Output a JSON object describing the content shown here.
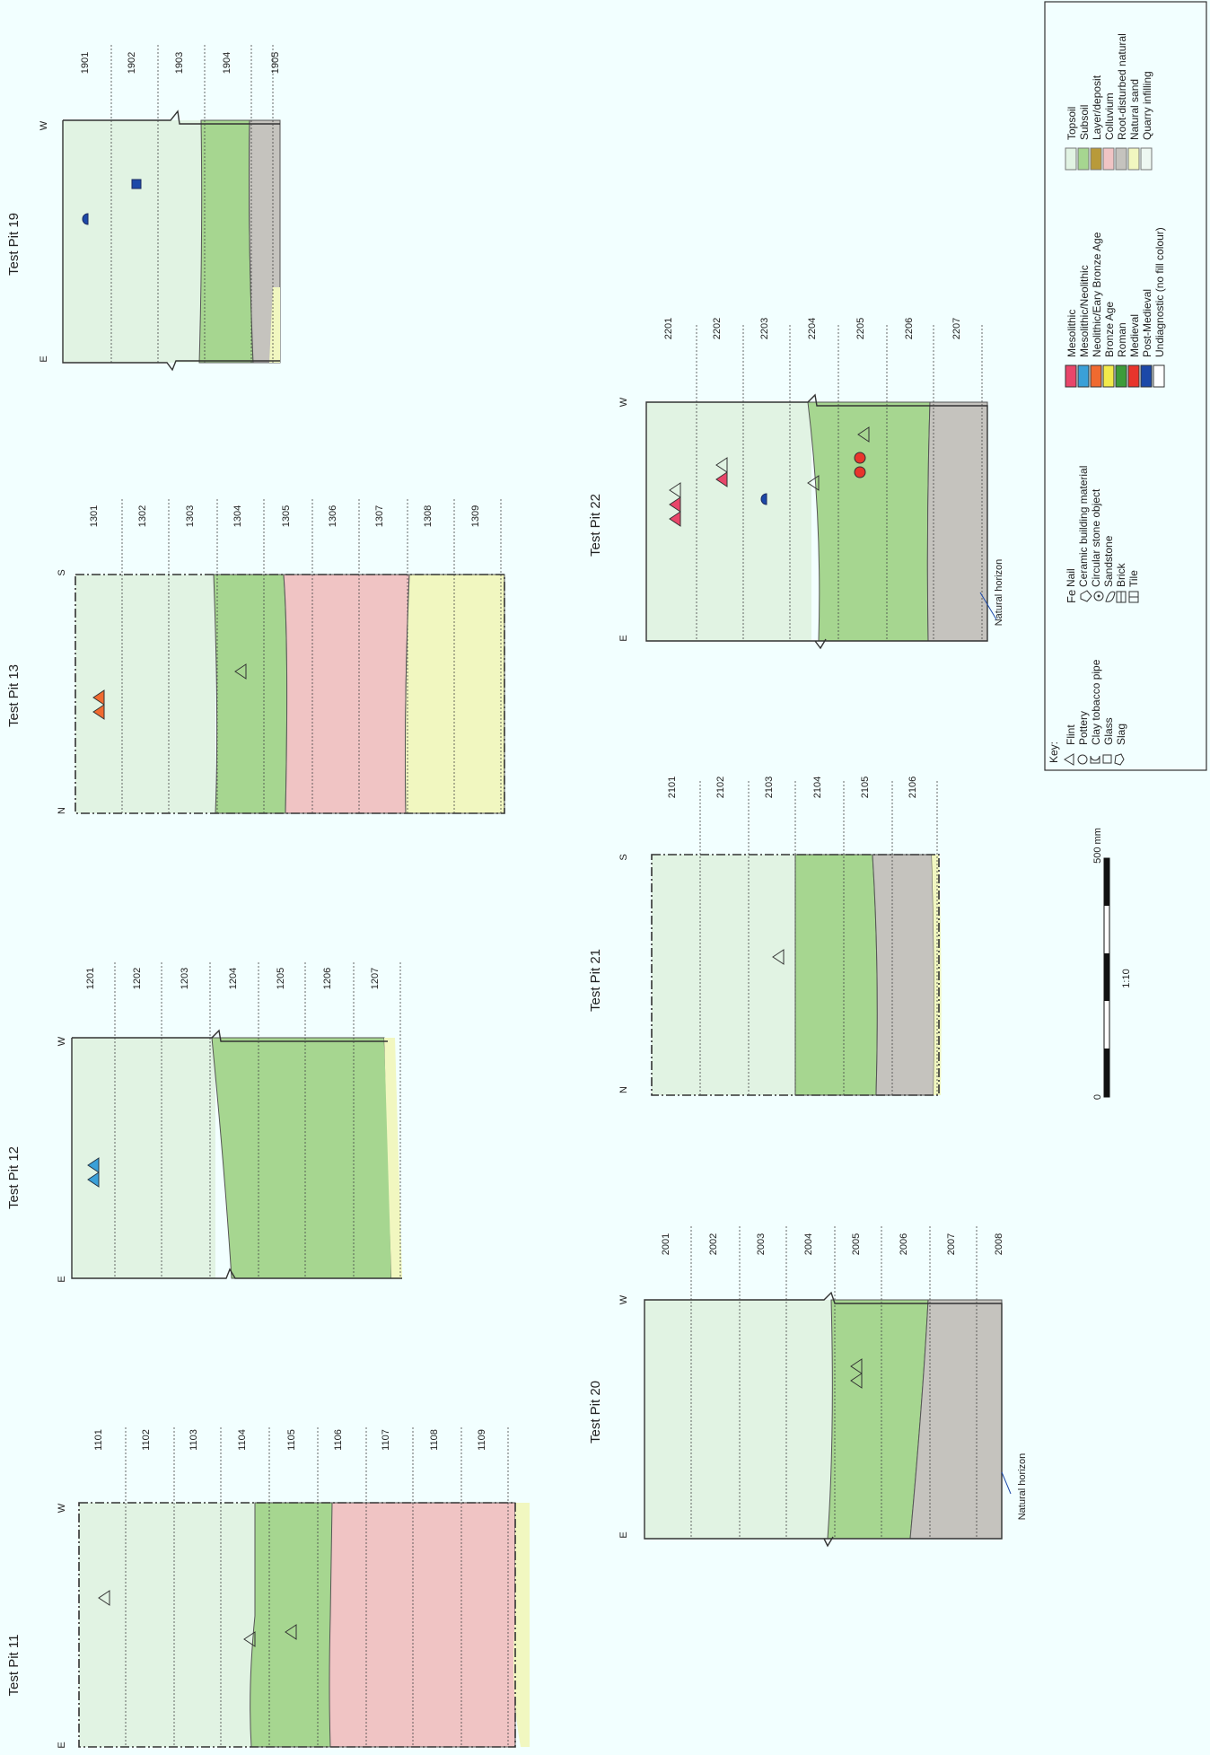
{
  "colors": {
    "topsoil": "#e1f3e3",
    "subsoil": "#a6d690",
    "layer_deposit": "#b89a3a",
    "colluvium": "#f0c4c4",
    "root_disturbed_natural": "#c5c3be",
    "natural_sand": "#f1f7c0",
    "quarry_infilling": "#eef8f2",
    "mesolithic": "#e8466a",
    "mesolithic_neolithic": "#3aa0d8",
    "neolithic_early_bronze_age": "#f06a30",
    "bronze_age": "#f2ea4a",
    "roman": "#3d9c3a",
    "medieval": "#e8352c",
    "post_medieval": "#1c48a8",
    "undiagnostic": "#ffffff",
    "background": "#f2ffff"
  },
  "pits": [
    {
      "id": "tp11",
      "title": "Test Pit 11",
      "top_label": "W",
      "bottom_label": "E",
      "contexts": [
        "1101",
        "1102",
        "1103",
        "1104",
        "1105",
        "1106",
        "1107",
        "1108",
        "1109"
      ],
      "icon_names": [
        "flint-icon",
        "flint-icon",
        "flint-icon"
      ]
    },
    {
      "id": "tp12",
      "title": "Test Pit 12",
      "top_label": "W",
      "bottom_label": "E",
      "contexts": [
        "1201",
        "1202",
        "1203",
        "1204",
        "1205",
        "1206",
        "1207"
      ],
      "icon_names": [
        "flint-icon",
        "flint-icon"
      ]
    },
    {
      "id": "tp13",
      "title": "Test Pit 13",
      "top_label": "S",
      "bottom_label": "N",
      "contexts": [
        "1301",
        "1302",
        "1303",
        "1304",
        "1305",
        "1306",
        "1307",
        "1308",
        "1309"
      ],
      "icon_names": [
        "flint-icon",
        "flint-icon",
        "flint-icon"
      ]
    },
    {
      "id": "tp19",
      "title": "Test Pit 19",
      "top_label": "W",
      "bottom_label": "E",
      "contexts": [
        "1901",
        "1902",
        "1903",
        "1904",
        "1905"
      ],
      "icon_names": [
        "clay-tobacco-pipe-icon",
        "glass-icon"
      ]
    },
    {
      "id": "tp20",
      "title": "Test Pit 20",
      "top_label": "W",
      "bottom_label": "E",
      "contexts": [
        "2001",
        "2002",
        "2003",
        "2004",
        "2005",
        "2006",
        "2007",
        "2008"
      ],
      "icon_names": [
        "flint-icon",
        "flint-icon"
      ],
      "note": "Natural horizon"
    },
    {
      "id": "tp21",
      "title": "Test Pit 21",
      "top_label": "S",
      "bottom_label": "N",
      "contexts": [
        "2101",
        "2102",
        "2103",
        "2104",
        "2105",
        "2106"
      ],
      "icon_names": [
        "flint-icon"
      ]
    },
    {
      "id": "tp22",
      "title": "Test Pit 22",
      "top_label": "W",
      "bottom_label": "E",
      "contexts": [
        "2201",
        "2202",
        "2203",
        "2204",
        "2205",
        "2206",
        "2207"
      ],
      "icon_names": [
        "flint-icon",
        "pottery-icon",
        "clay-tobacco-pipe-icon"
      ],
      "note": "Natural horizon"
    }
  ],
  "scale": {
    "zero": "0",
    "ratio": "1:10",
    "max": "500 mm"
  },
  "key": {
    "title": "Key:",
    "finds": [
      {
        "icon": "flint-icon",
        "label": "Flint"
      },
      {
        "icon": "pottery-icon",
        "label": "Pottery"
      },
      {
        "icon": "clay-tobacco-pipe-icon",
        "label": "Clay tobacco pipe"
      },
      {
        "icon": "glass-icon",
        "label": "Glass"
      },
      {
        "icon": "slag-icon",
        "label": "Slag"
      }
    ],
    "finds2": [
      {
        "icon": "nail-icon",
        "label": "Nail",
        "glyph": "Fe"
      },
      {
        "icon": "ceramic-building-material-icon",
        "label": "Ceramic building material"
      },
      {
        "icon": "circular-stone-object-icon",
        "label": "Circular stone object"
      },
      {
        "icon": "sandstone-icon",
        "label": "Sandstone"
      },
      {
        "icon": "brick-icon",
        "label": "Brick"
      },
      {
        "icon": "tile-icon",
        "label": "Tile"
      }
    ],
    "periods": [
      {
        "label": "Mesolithic",
        "color": "#e8466a"
      },
      {
        "label": "Mesolithic/Neolithic",
        "color": "#3aa0d8"
      },
      {
        "label": "Neolithic/Eary Bronze Age",
        "color": "#f06a30"
      },
      {
        "label": "Bronze Age",
        "color": "#f2ea4a"
      },
      {
        "label": "Roman",
        "color": "#3d9c3a"
      },
      {
        "label": "Medieval",
        "color": "#e8352c"
      },
      {
        "label": "Post-Medieval",
        "color": "#1c48a8"
      },
      {
        "label": "Undiagnostic (no fill colour)",
        "color": "#ffffff"
      }
    ],
    "deposits": [
      {
        "label": "Topsoil",
        "color": "#e1f3e3"
      },
      {
        "label": "Subsoil",
        "color": "#a6d690"
      },
      {
        "label": "Layer/deposit",
        "color": "#b89a3a"
      },
      {
        "label": "Colluvium",
        "color": "#f0c4c4"
      },
      {
        "label": "Root-disturbed natural",
        "color": "#c5c3be"
      },
      {
        "label": "Natural sand",
        "color": "#f1f7c0"
      },
      {
        "label": "Quarry infilling",
        "color": "#eef8f2"
      }
    ]
  }
}
